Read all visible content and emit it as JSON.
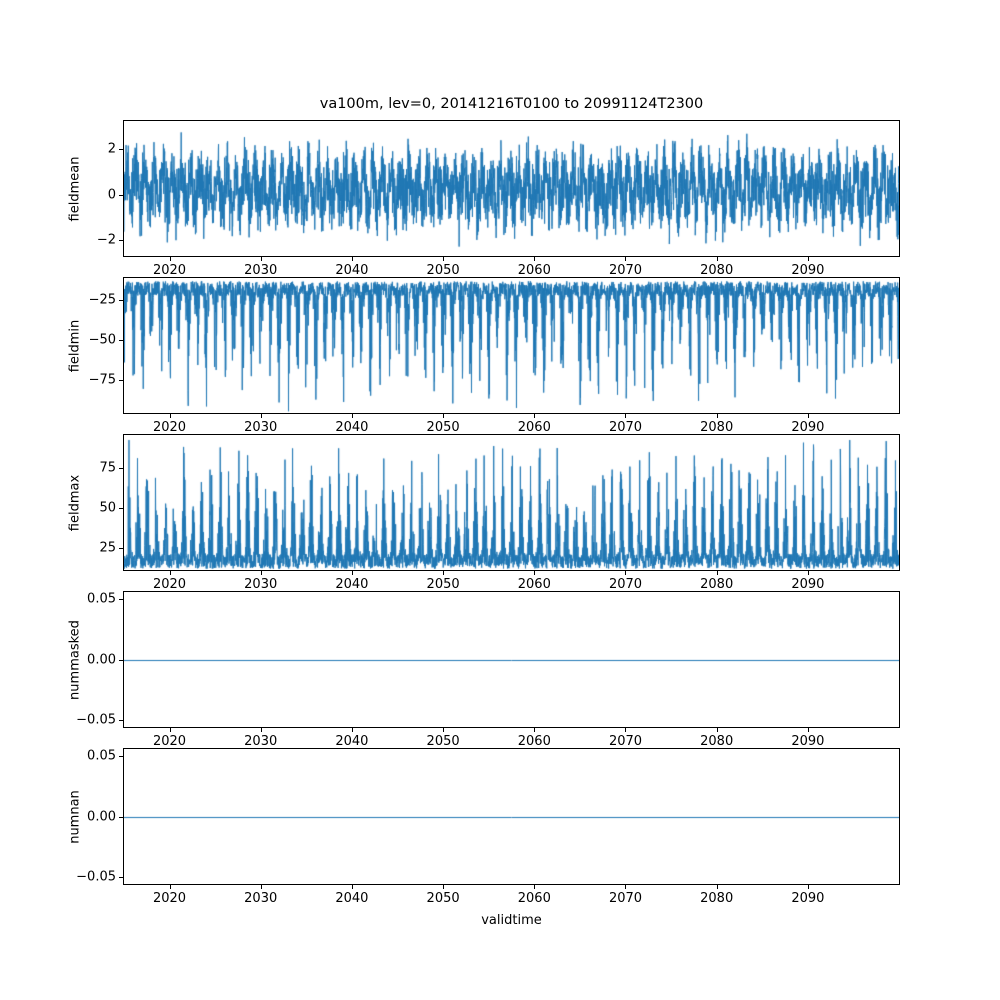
{
  "figure": {
    "title": "va100m, lev=0, 20141216T0100 to 20991124T2300",
    "xlabel": "validtime",
    "background": "#ffffff",
    "line_color": "#1f77b4"
  },
  "chart_data": [
    {
      "type": "line",
      "ylabel": "fieldmean",
      "description": "Dense noisy hourly time series of field mean, oscillating roughly between -2.6 and 3.2 around ~0.3 for 2015-2100",
      "xlim": [
        2014.9,
        2100.1
      ],
      "ylim": [
        -2.75,
        3.3
      ],
      "xticks": [
        {
          "v": 2020,
          "label": "2020"
        },
        {
          "v": 2030,
          "label": "2030"
        },
        {
          "v": 2040,
          "label": "2040"
        },
        {
          "v": 2050,
          "label": "2050"
        },
        {
          "v": 2060,
          "label": "2060"
        },
        {
          "v": 2070,
          "label": "2070"
        },
        {
          "v": 2080,
          "label": "2080"
        },
        {
          "v": 2090,
          "label": "2090"
        }
      ],
      "yticks": [
        {
          "v": 2,
          "label": "2"
        },
        {
          "v": 0,
          "label": "0"
        },
        {
          "v": -2,
          "label": "−2"
        }
      ],
      "gen": {
        "kind": "mean",
        "seed": 7,
        "n": 4200,
        "base": 0.3,
        "amp": 1.8,
        "seas": 1.0,
        "phase": 0.4
      }
    },
    {
      "type": "line",
      "ylabel": "fieldmin",
      "description": "Dense noisy series of field minimum: solid band near -13 to -22 with seasonal downward spikes reaching about -90",
      "xlim": [
        2014.9,
        2100.1
      ],
      "ylim": [
        -96,
        -11
      ],
      "xticks": [
        {
          "v": 2020,
          "label": "2020"
        },
        {
          "v": 2030,
          "label": "2030"
        },
        {
          "v": 2040,
          "label": "2040"
        },
        {
          "v": 2050,
          "label": "2050"
        },
        {
          "v": 2060,
          "label": "2060"
        },
        {
          "v": 2070,
          "label": "2070"
        },
        {
          "v": 2080,
          "label": "2080"
        },
        {
          "v": 2090,
          "label": "2090"
        }
      ],
      "yticks": [
        {
          "v": -25,
          "label": "−25"
        },
        {
          "v": -50,
          "label": "−50"
        },
        {
          "v": -75,
          "label": "−75"
        }
      ],
      "gen": {
        "kind": "spiky",
        "seed": 11,
        "n": 4200,
        "base": -13,
        "sign": -1,
        "band": 9,
        "spike": 74,
        "phase": 2.0
      }
    },
    {
      "type": "line",
      "ylabel": "fieldmax",
      "description": "Dense noisy series of field maximum: solid band near 13 to 22 with seasonal upward spikes reaching about 90",
      "xlim": [
        2014.9,
        2100.1
      ],
      "ylim": [
        11,
        96
      ],
      "xticks": [
        {
          "v": 2020,
          "label": "2020"
        },
        {
          "v": 2030,
          "label": "2030"
        },
        {
          "v": 2040,
          "label": "2040"
        },
        {
          "v": 2050,
          "label": "2050"
        },
        {
          "v": 2060,
          "label": "2060"
        },
        {
          "v": 2070,
          "label": "2070"
        },
        {
          "v": 2080,
          "label": "2080"
        },
        {
          "v": 2090,
          "label": "2090"
        }
      ],
      "yticks": [
        {
          "v": 75,
          "label": "75"
        },
        {
          "v": 50,
          "label": "50"
        },
        {
          "v": 25,
          "label": "25"
        }
      ],
      "gen": {
        "kind": "spiky",
        "seed": 13,
        "n": 4200,
        "base": 13,
        "sign": 1,
        "band": 9,
        "spike": 74,
        "phase": 5.0
      }
    },
    {
      "type": "line",
      "ylabel": "nummasked",
      "description": "Constant line at 0.00 (number of masked points) across 2015-2100",
      "xlim": [
        2014.9,
        2100.1
      ],
      "ylim": [
        -0.057,
        0.057
      ],
      "xticks": [
        {
          "v": 2020,
          "label": "2020"
        },
        {
          "v": 2030,
          "label": "2030"
        },
        {
          "v": 2040,
          "label": "2040"
        },
        {
          "v": 2050,
          "label": "2050"
        },
        {
          "v": 2060,
          "label": "2060"
        },
        {
          "v": 2070,
          "label": "2070"
        },
        {
          "v": 2080,
          "label": "2080"
        },
        {
          "v": 2090,
          "label": "2090"
        }
      ],
      "yticks": [
        {
          "v": 0.05,
          "label": "0.05"
        },
        {
          "v": 0,
          "label": "0.00"
        },
        {
          "v": -0.05,
          "label": "−0.05"
        }
      ],
      "gen": {
        "kind": "flat",
        "value": 0
      }
    },
    {
      "type": "line",
      "ylabel": "numnan",
      "description": "Constant line at 0.00 (number of NaN points) across 2015-2100",
      "xlim": [
        2014.9,
        2100.1
      ],
      "ylim": [
        -0.057,
        0.057
      ],
      "xticks": [
        {
          "v": 2020,
          "label": "2020"
        },
        {
          "v": 2030,
          "label": "2030"
        },
        {
          "v": 2040,
          "label": "2040"
        },
        {
          "v": 2050,
          "label": "2050"
        },
        {
          "v": 2060,
          "label": "2060"
        },
        {
          "v": 2070,
          "label": "2070"
        },
        {
          "v": 2080,
          "label": "2080"
        },
        {
          "v": 2090,
          "label": "2090"
        }
      ],
      "yticks": [
        {
          "v": 0.05,
          "label": "0.05"
        },
        {
          "v": 0,
          "label": "0.00"
        },
        {
          "v": -0.05,
          "label": "−0.05"
        }
      ],
      "gen": {
        "kind": "flat",
        "value": 0
      }
    }
  ]
}
